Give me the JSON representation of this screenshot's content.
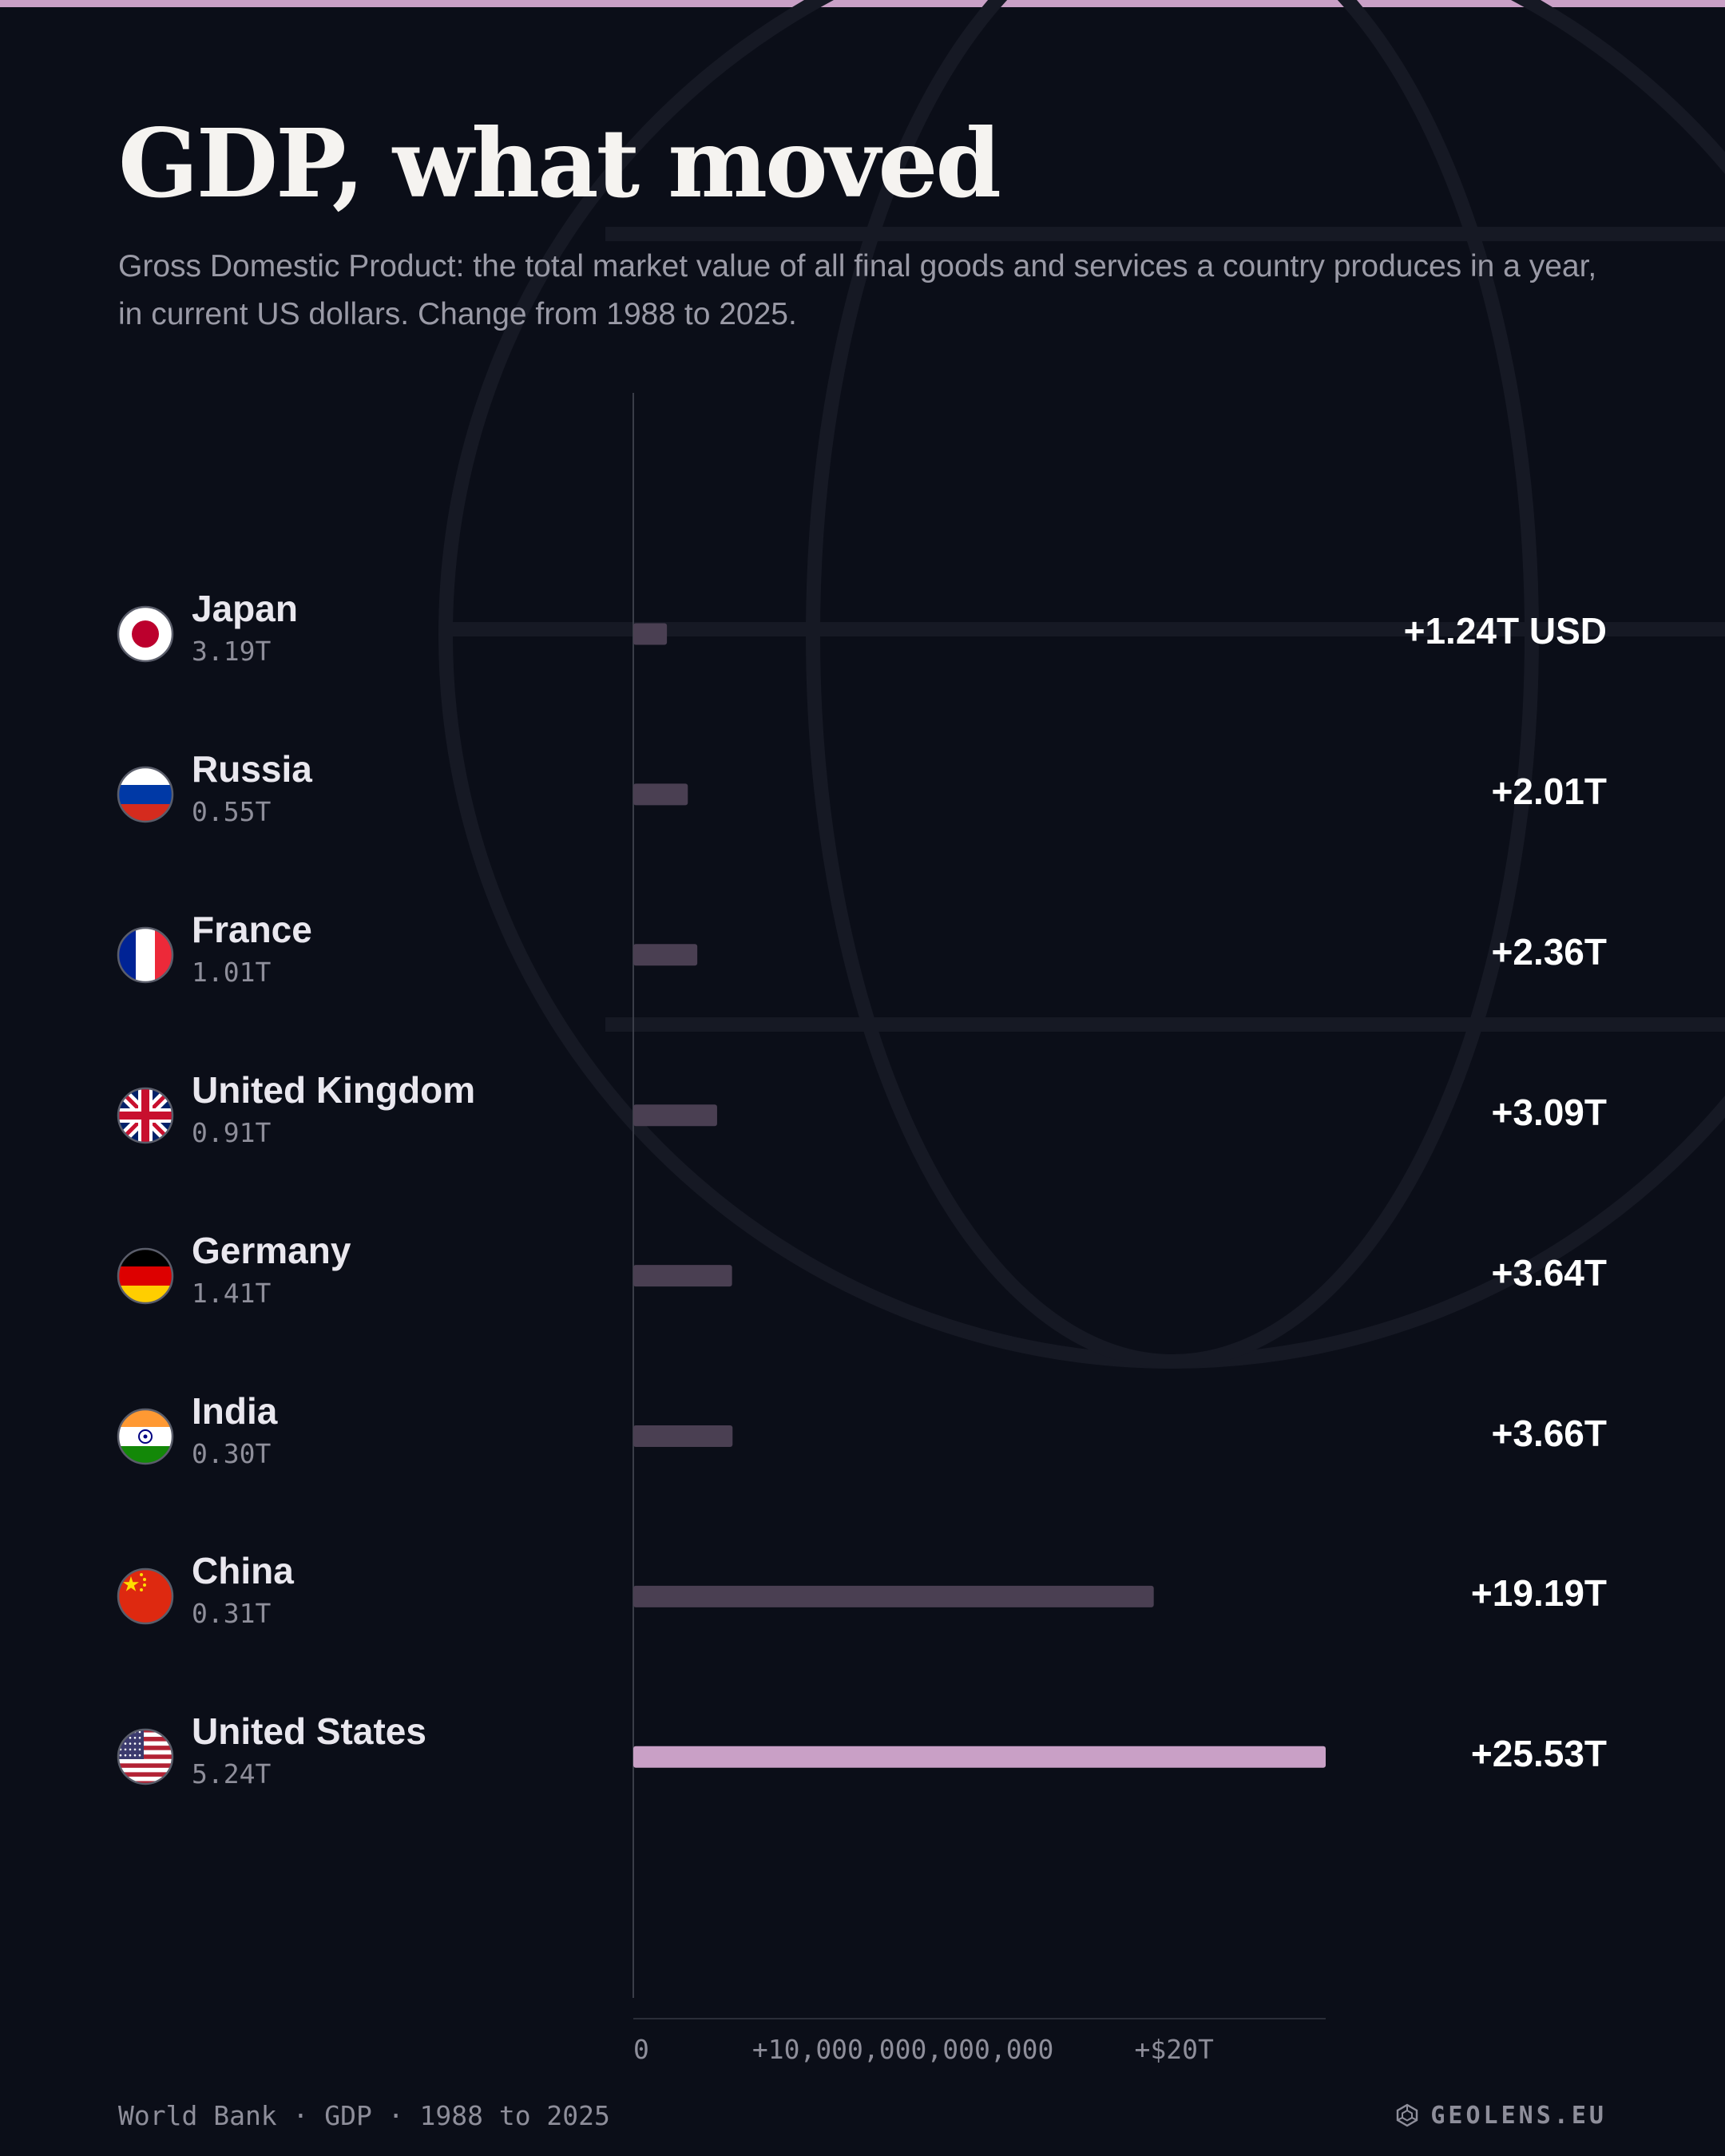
{
  "header": {
    "title": "GDP, what moved",
    "subtitle": "Gross Domestic Product: the total market value of all final goods and services a country produces in a year, in current US dollars. Change from 1988 to 2025."
  },
  "colors": {
    "background": "#0b0e18",
    "accent": "#c9a0c6",
    "bar": "#4a3f52",
    "top_bar": "#c9a0c6",
    "axis": "#3a3d48"
  },
  "rows": [
    {
      "country": "Japan",
      "flag_icon": "japan-flag-icon",
      "base_label": "3.19T",
      "change_label": "+1.24T USD"
    },
    {
      "country": "Russia",
      "flag_icon": "russia-flag-icon",
      "base_label": "0.55T",
      "change_label": "+2.01T"
    },
    {
      "country": "France",
      "flag_icon": "france-flag-icon",
      "base_label": "1.01T",
      "change_label": "+2.36T"
    },
    {
      "country": "United Kingdom",
      "flag_icon": "united-kingdom-flag-icon",
      "base_label": "0.91T",
      "change_label": "+3.09T"
    },
    {
      "country": "Germany",
      "flag_icon": "germany-flag-icon",
      "base_label": "1.41T",
      "change_label": "+3.64T"
    },
    {
      "country": "India",
      "flag_icon": "india-flag-icon",
      "base_label": "0.30T",
      "change_label": "+3.66T"
    },
    {
      "country": "China",
      "flag_icon": "china-flag-icon",
      "base_label": "0.31T",
      "change_label": "+19.19T"
    },
    {
      "country": "United States",
      "flag_icon": "united-states-flag-icon",
      "base_label": "5.24T",
      "change_label": "+25.53T"
    }
  ],
  "axis": {
    "ticks": [
      {
        "value": 0,
        "label": "0"
      },
      {
        "value": 10000000000000,
        "label": "+10,000,000,000,000"
      },
      {
        "value": 20000000000000,
        "label": "+$20T"
      }
    ]
  },
  "chart_data": {
    "type": "bar",
    "orientation": "horizontal",
    "categories": [
      "Japan",
      "Russia",
      "France",
      "United Kingdom",
      "Germany",
      "India",
      "China",
      "United States"
    ],
    "series": [
      {
        "values": [
          1.24,
          2.01,
          2.36,
          3.09,
          3.64,
          3.66,
          19.19,
          25.53
        ]
      }
    ],
    "values_unit": "trillion USD",
    "baseline_1988": [
      3.19,
      0.55,
      1.01,
      0.91,
      1.41,
      0.3,
      0.31,
      5.24
    ],
    "xlim": [
      0,
      25.53
    ],
    "x_ticks": [
      0,
      10,
      20
    ],
    "x_tick_labels": [
      "0",
      "+10,000,000,000,000",
      "+$20T"
    ],
    "highlight": "United States",
    "grid": false
  },
  "footer": {
    "source": "World Bank · GDP · 1988 to 2025",
    "brand": "GEOLENS.EU",
    "brand_icon": "geolens-logo-icon"
  }
}
